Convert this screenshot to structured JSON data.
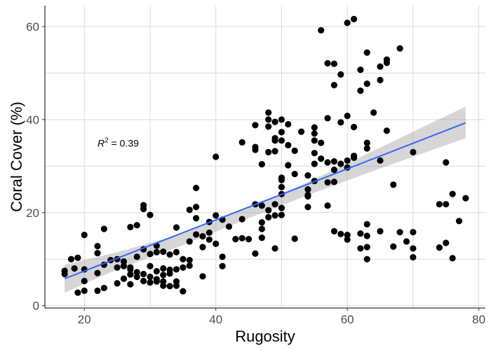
{
  "chart_data": {
    "type": "scatter",
    "title": "",
    "xlabel": "Rugosity",
    "ylabel": "Coral Cover (%)",
    "xlim": [
      14,
      81
    ],
    "ylim": [
      -0.5,
      64.5
    ],
    "x_ticks": [
      20,
      40,
      60,
      80
    ],
    "y_ticks": [
      0,
      20,
      40,
      60
    ],
    "grid": true,
    "colors": {
      "points": "#000000",
      "fit_line": "#3366ff",
      "ci_band": "#999999"
    },
    "annotation": {
      "text": "R² = 0.39",
      "r2_value": "0.39",
      "x": 22,
      "y": 34.2
    },
    "fit": {
      "method": "linear",
      "x_range": [
        17,
        78
      ],
      "start_y": 5.8,
      "end_y": 39.3,
      "ci_upper": [
        {
          "x": 17,
          "y": 8.8
        },
        {
          "x": 25,
          "y": 11.5
        },
        {
          "x": 35,
          "y": 15.5
        },
        {
          "x": 45,
          "y": 21.0
        },
        {
          "x": 55,
          "y": 27.2
        },
        {
          "x": 65,
          "y": 34.0
        },
        {
          "x": 78,
          "y": 42.8
        }
      ],
      "ci_lower": [
        {
          "x": 17,
          "y": 2.8
        },
        {
          "x": 25,
          "y": 7.8
        },
        {
          "x": 35,
          "y": 13.0
        },
        {
          "x": 45,
          "y": 18.8
        },
        {
          "x": 55,
          "y": 24.3
        },
        {
          "x": 65,
          "y": 29.5
        },
        {
          "x": 78,
          "y": 36.0
        }
      ]
    },
    "points": [
      [
        17,
        7.5
      ],
      [
        17,
        6.8
      ],
      [
        18,
        10
      ],
      [
        18.5,
        8
      ],
      [
        19,
        10.3
      ],
      [
        19,
        2.8
      ],
      [
        20,
        15.2
      ],
      [
        20,
        7.8
      ],
      [
        20,
        5.3
      ],
      [
        20,
        3.2
      ],
      [
        22,
        12.8
      ],
      [
        22,
        11.3
      ],
      [
        22,
        7
      ],
      [
        22,
        3.2
      ],
      [
        23,
        16.5
      ],
      [
        23,
        8.8
      ],
      [
        23,
        3.8
      ],
      [
        24,
        9.8
      ],
      [
        25,
        10
      ],
      [
        25,
        8.2
      ],
      [
        25,
        4.8
      ],
      [
        26,
        9.5
      ],
      [
        26,
        8.5
      ],
      [
        26,
        5.8
      ],
      [
        27,
        16.9
      ],
      [
        27,
        7.8
      ],
      [
        27,
        6.7
      ],
      [
        27,
        4.6
      ],
      [
        27,
        8.2
      ],
      [
        28,
        17.3
      ],
      [
        28,
        10.5
      ],
      [
        28,
        7.2
      ],
      [
        28,
        6.2
      ],
      [
        29,
        21.6
      ],
      [
        29,
        20.8
      ],
      [
        29,
        12.1
      ],
      [
        29,
        6.8
      ],
      [
        29,
        5.3
      ],
      [
        30,
        19.5
      ],
      [
        30,
        11.1
      ],
      [
        30,
        8.5
      ],
      [
        30,
        6.2
      ],
      [
        30,
        5
      ],
      [
        31,
        12.9
      ],
      [
        31,
        11.5
      ],
      [
        31,
        7.4
      ],
      [
        31,
        5.7
      ],
      [
        31,
        5.2
      ],
      [
        32,
        11.6
      ],
      [
        32,
        8
      ],
      [
        32,
        6.6
      ],
      [
        32,
        5.2
      ],
      [
        32,
        4.3
      ],
      [
        33,
        11
      ],
      [
        33,
        7.7
      ],
      [
        33,
        6.9
      ],
      [
        33,
        4.2
      ],
      [
        34,
        16.8
      ],
      [
        34,
        11.5
      ],
      [
        34,
        7.8
      ],
      [
        34,
        5.2
      ],
      [
        34,
        4.3
      ],
      [
        35,
        10
      ],
      [
        35,
        8.2
      ],
      [
        35,
        3.1
      ],
      [
        36,
        20.6
      ],
      [
        36,
        13.8
      ],
      [
        36,
        9.8
      ],
      [
        36,
        8.6
      ],
      [
        37,
        25.3
      ],
      [
        37,
        21.2
      ],
      [
        37,
        18.8
      ],
      [
        37,
        15.3
      ],
      [
        38,
        6.3
      ],
      [
        38,
        14.9
      ],
      [
        38,
        12.6
      ],
      [
        39,
        18
      ],
      [
        39,
        15.7
      ],
      [
        39,
        14.2
      ],
      [
        40,
        32
      ],
      [
        40,
        19.4
      ],
      [
        40,
        13.3
      ],
      [
        41,
        18.5
      ],
      [
        41,
        10.5
      ],
      [
        41,
        8.5
      ],
      [
        42,
        17
      ],
      [
        43,
        14.3
      ],
      [
        44,
        35.1
      ],
      [
        44,
        18.6
      ],
      [
        44,
        14.5
      ],
      [
        45,
        14.3
      ],
      [
        46,
        38.8
      ],
      [
        46,
        34.1
      ],
      [
        46,
        33.5
      ],
      [
        46,
        21.8
      ],
      [
        46,
        11.2
      ],
      [
        47,
        30.4
      ],
      [
        47,
        21.5
      ],
      [
        47,
        17.9
      ],
      [
        47,
        16.5
      ],
      [
        47,
        14.6
      ],
      [
        48,
        41.5
      ],
      [
        48,
        40
      ],
      [
        48,
        38.5
      ],
      [
        48,
        33
      ],
      [
        48,
        20.5
      ],
      [
        48,
        19
      ],
      [
        49,
        39.5
      ],
      [
        49,
        36
      ],
      [
        49,
        35.5
      ],
      [
        49,
        33.2
      ],
      [
        49,
        21.8
      ],
      [
        49,
        19.4
      ],
      [
        49,
        12.3
      ],
      [
        50,
        40
      ],
      [
        50,
        37.3
      ],
      [
        50,
        35.5
      ],
      [
        50,
        27.5
      ],
      [
        50,
        27
      ],
      [
        50,
        25.5
      ],
      [
        50,
        24
      ],
      [
        50,
        21
      ],
      [
        50,
        19.5
      ],
      [
        51,
        39
      ],
      [
        51,
        34.5
      ],
      [
        51,
        30.2
      ],
      [
        52,
        33.3
      ],
      [
        52,
        28.3
      ],
      [
        52,
        14.4
      ],
      [
        53,
        37.4
      ],
      [
        54,
        28
      ],
      [
        54,
        25
      ],
      [
        54,
        23.8
      ],
      [
        54,
        23.5
      ],
      [
        54,
        21.2
      ],
      [
        55,
        38.3
      ],
      [
        55,
        37
      ],
      [
        55,
        35.5
      ],
      [
        55,
        32.8
      ],
      [
        55,
        30.5
      ],
      [
        55,
        26.8
      ],
      [
        56,
        59.2
      ],
      [
        56,
        35
      ],
      [
        56,
        31.6
      ],
      [
        57,
        52.1
      ],
      [
        57,
        40.3
      ],
      [
        57,
        30.8
      ],
      [
        57,
        26.5
      ],
      [
        57,
        21.5
      ],
      [
        58,
        52
      ],
      [
        58,
        47.4
      ],
      [
        58,
        31
      ],
      [
        58,
        29.2
      ],
      [
        58,
        26.6
      ],
      [
        58,
        16
      ],
      [
        59,
        49.7
      ],
      [
        59,
        39.4
      ],
      [
        59,
        30.5
      ],
      [
        59,
        15.4
      ],
      [
        60,
        60.8
      ],
      [
        60,
        40.8
      ],
      [
        60,
        31.2
      ],
      [
        60,
        29.7
      ],
      [
        60,
        15.2
      ],
      [
        60,
        14.2
      ],
      [
        61,
        61.6
      ],
      [
        61,
        38.4
      ],
      [
        61,
        32.2
      ],
      [
        61,
        31.8
      ],
      [
        62,
        50.7
      ],
      [
        62,
        46.2
      ],
      [
        62,
        15.5
      ],
      [
        62,
        12.3
      ],
      [
        63,
        54.4
      ],
      [
        63,
        47.7
      ],
      [
        63,
        35
      ],
      [
        63,
        33.8
      ],
      [
        63,
        17.5
      ],
      [
        63,
        15
      ],
      [
        63,
        12.6
      ],
      [
        63,
        10
      ],
      [
        64,
        41.5
      ],
      [
        65,
        51.4
      ],
      [
        65,
        48.5
      ],
      [
        65,
        31.2
      ],
      [
        65,
        16
      ],
      [
        66,
        52.9
      ],
      [
        66,
        52.2
      ],
      [
        66,
        37.6
      ],
      [
        67,
        26
      ],
      [
        67,
        12.7
      ],
      [
        68,
        55.3
      ],
      [
        68,
        15.8
      ],
      [
        69,
        13.8
      ],
      [
        70,
        33
      ],
      [
        70,
        15.8
      ],
      [
        70,
        12.3
      ],
      [
        70,
        10.4
      ],
      [
        74,
        21.8
      ],
      [
        74,
        12.5
      ],
      [
        75,
        30.8
      ],
      [
        75,
        21.8
      ],
      [
        75,
        13.5
      ],
      [
        76,
        24
      ],
      [
        76,
        10.2
      ],
      [
        77,
        18.2
      ],
      [
        78,
        23.1
      ]
    ]
  }
}
